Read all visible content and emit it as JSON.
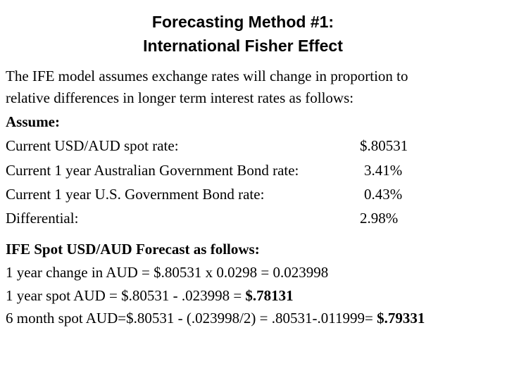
{
  "title": {
    "line1": "Forecasting Method #1:",
    "line2": "International Fisher Effect"
  },
  "intro": {
    "line1": "The IFE model assumes exchange rates will change in proportion to",
    "line2": "relative differences in longer term interest rates as follows:"
  },
  "assume_label": "Assume:",
  "assumptions": [
    {
      "label": "Current USD/AUD spot rate:",
      "value": "$.80531"
    },
    {
      "label": "Current 1 year Australian Government Bond rate:",
      "value": "3.41%"
    },
    {
      "label": "Current 1 year U.S. Government Bond rate:",
      "value": "0.43%"
    },
    {
      "label": "Differential:",
      "value": "2.98%"
    }
  ],
  "forecast": {
    "heading": "IFE Spot USD/AUD Forecast as follows:",
    "line1": "1 year change in AUD =  $.80531 x 0.0298 = 0.023998",
    "line2_text": "1 year spot AUD = $.80531 - .023998 = ",
    "line2_result": "$.78131",
    "line3_text": "6 month spot AUD=$.80531 - (.023998/2) = .80531-.011999= ",
    "line3_result": "$.79331"
  }
}
